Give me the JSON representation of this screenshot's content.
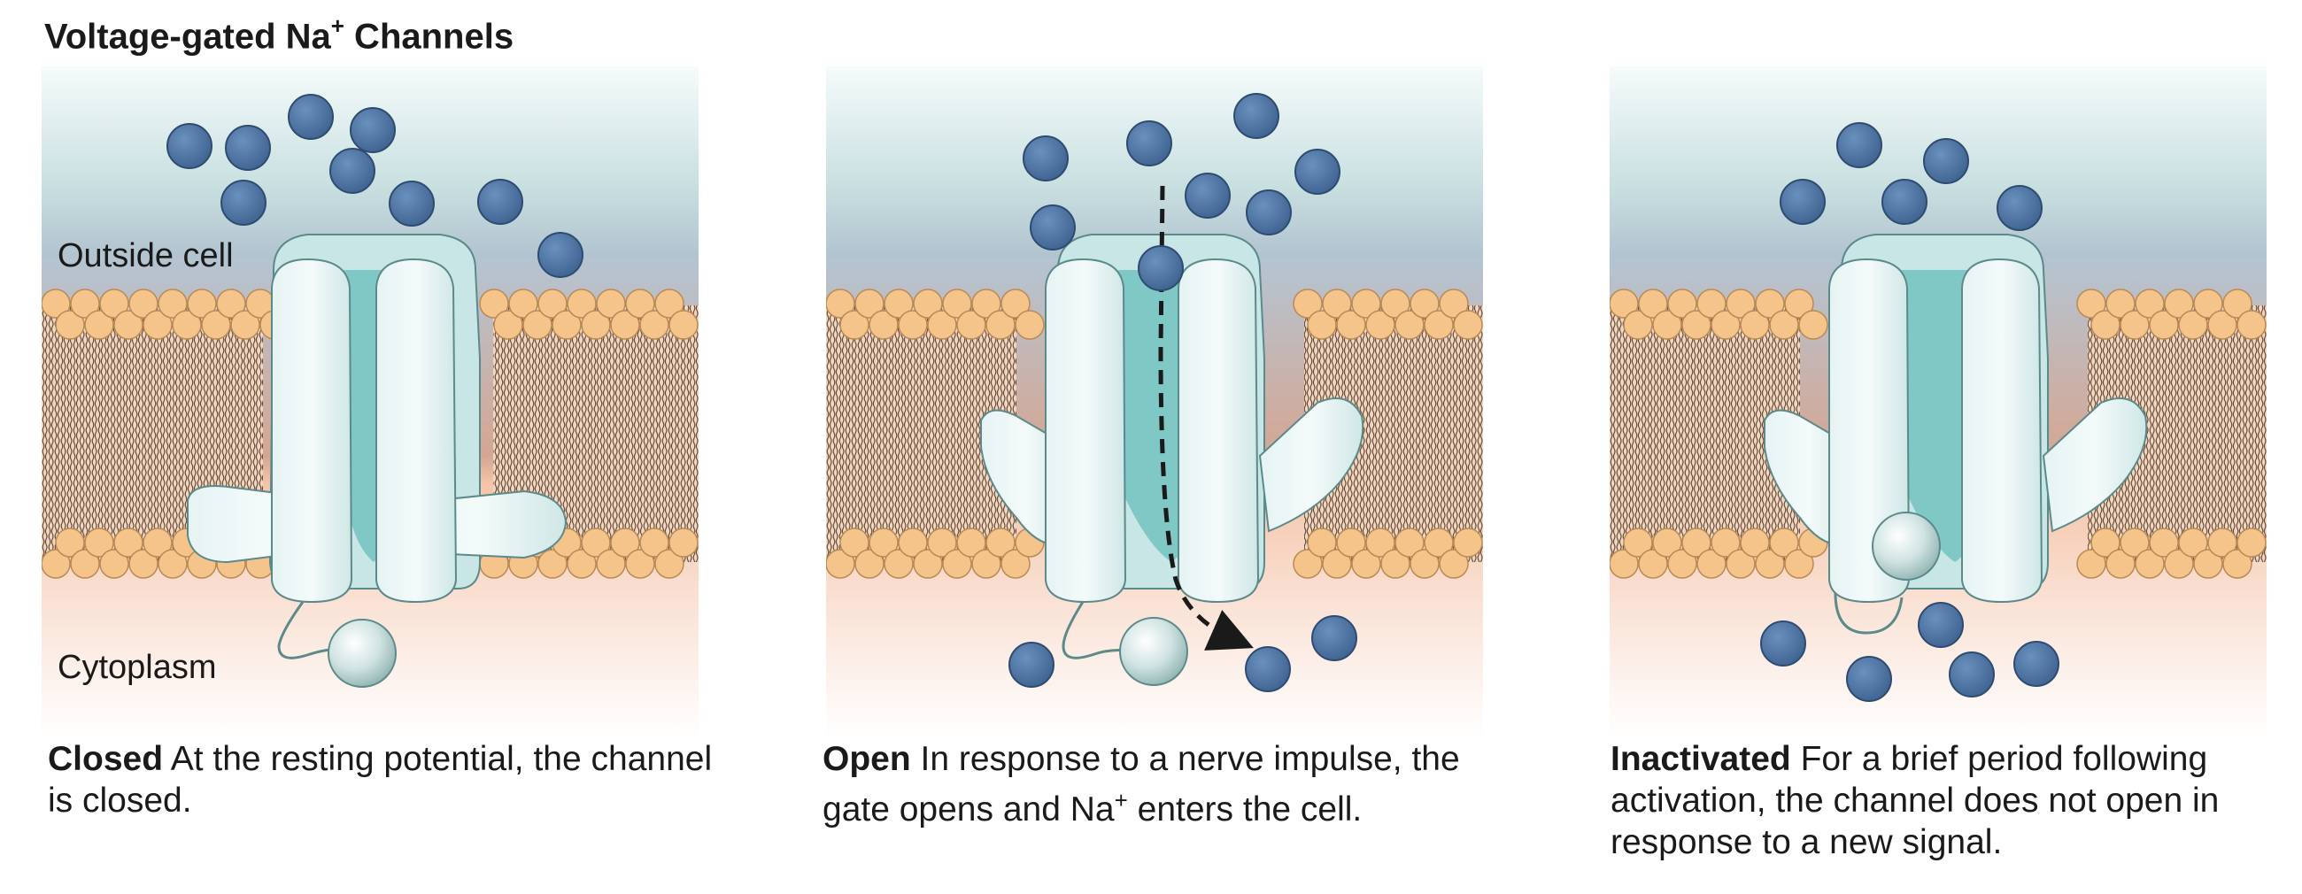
{
  "title": {
    "main": "Voltage-gated Na",
    "sup": "+",
    "end": " Channels"
  },
  "colors": {
    "ion": "#4a6f9c",
    "channel": "#d6ecec",
    "channel_core": "#7fc8c6",
    "lipid_head": "#f4c48a",
    "lipid_tail": "#6b4a3a",
    "arrow": "#1a1a1a"
  },
  "panels": [
    {
      "id": "closed",
      "labels": {
        "outside": "Outside cell",
        "inside": "Cytoplasm"
      },
      "caption": {
        "bold": "Closed",
        "text": " At the resting potential, the channel is closed."
      }
    },
    {
      "id": "open",
      "caption": {
        "bold": "Open",
        "pre": " In response to a nerve impulse, the gate opens and Na",
        "sup": "+",
        "post": " enters the cell."
      }
    },
    {
      "id": "inactivated",
      "caption": {
        "bold": "Inactivated",
        "text": " For a brief period following activation, the channel does not open in response to a new signal."
      }
    }
  ]
}
